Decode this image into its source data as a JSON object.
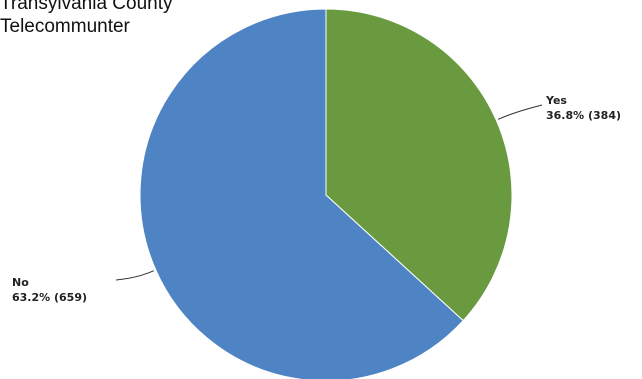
{
  "chart_data": {
    "type": "pie",
    "title_lines": [
      "Transylvania County",
      "Telecommunter"
    ],
    "slices": [
      {
        "name": "Yes",
        "percent": 36.8,
        "count": 384,
        "value_label": "36.8% (384)",
        "color": "#6a9a3f"
      },
      {
        "name": "No",
        "percent": 63.2,
        "count": 659,
        "value_label": "63.2% (659)",
        "color": "#4e84c4"
      }
    ],
    "legend": "none",
    "start_angle": "top",
    "direction": "clockwise"
  }
}
